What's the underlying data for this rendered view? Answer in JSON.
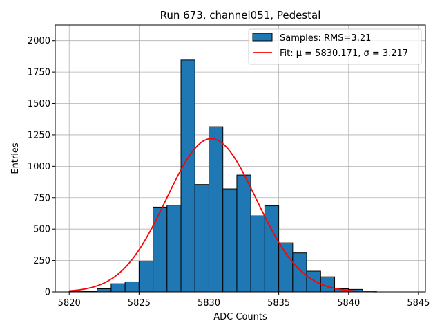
{
  "chart_data": {
    "type": "bar",
    "title": "Run 673, channel051, Pedestal",
    "xlabel": "ADC Counts",
    "ylabel": "Entries",
    "xlim": [
      5819,
      5845.5
    ],
    "ylim": [
      0,
      2125
    ],
    "xticks": [
      5820,
      5825,
      5830,
      5835,
      5840,
      5845
    ],
    "yticks": [
      0,
      250,
      500,
      750,
      1000,
      1250,
      1500,
      1750,
      2000
    ],
    "grid": true,
    "legend_position": "top-right",
    "histogram": {
      "name": "Samples: RMS=3.21",
      "color": "#1f77b4",
      "edgecolor": "#000000",
      "bins": [
        {
          "x0": 5820,
          "x1": 5821,
          "count": 3
        },
        {
          "x0": 5821,
          "x1": 5822,
          "count": 5
        },
        {
          "x0": 5822,
          "x1": 5823,
          "count": 25
        },
        {
          "x0": 5823,
          "x1": 5824,
          "count": 65
        },
        {
          "x0": 5824,
          "x1": 5825,
          "count": 80
        },
        {
          "x0": 5825,
          "x1": 5826,
          "count": 245
        },
        {
          "x0": 5826,
          "x1": 5827,
          "count": 675
        },
        {
          "x0": 5827,
          "x1": 5828,
          "count": 690
        },
        {
          "x0": 5828,
          "x1": 5829,
          "count": 1845
        },
        {
          "x0": 5829,
          "x1": 5830,
          "count": 855
        },
        {
          "x0": 5830,
          "x1": 5831,
          "count": 1315
        },
        {
          "x0": 5831,
          "x1": 5832,
          "count": 820
        },
        {
          "x0": 5832,
          "x1": 5833,
          "count": 930
        },
        {
          "x0": 5833,
          "x1": 5834,
          "count": 605
        },
        {
          "x0": 5834,
          "x1": 5835,
          "count": 685
        },
        {
          "x0": 5835,
          "x1": 5836,
          "count": 390
        },
        {
          "x0": 5836,
          "x1": 5837,
          "count": 310
        },
        {
          "x0": 5837,
          "x1": 5838,
          "count": 165
        },
        {
          "x0": 5838,
          "x1": 5839,
          "count": 120
        },
        {
          "x0": 5839,
          "x1": 5840,
          "count": 25
        },
        {
          "x0": 5840,
          "x1": 5841,
          "count": 20
        },
        {
          "x0": 5841,
          "x1": 5842,
          "count": 3
        }
      ]
    },
    "fit": {
      "name": "Fit: μ = 5830.171, σ = 3.217",
      "color": "#ff0000",
      "type": "gaussian",
      "mu": 5830.171,
      "sigma": 3.217,
      "amplitude": 1220,
      "x_range": [
        5820,
        5842
      ]
    }
  }
}
